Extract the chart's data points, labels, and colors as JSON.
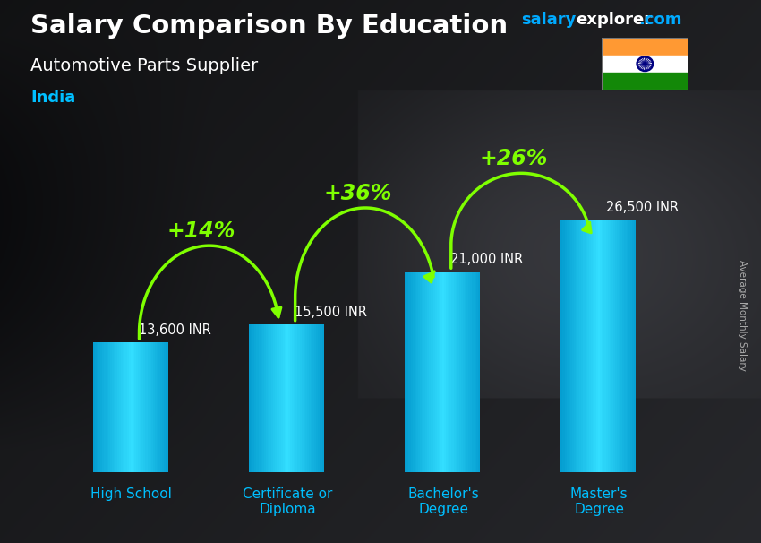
{
  "title_salary": "Salary Comparison By Education",
  "subtitle": "Automotive Parts Supplier",
  "country": "India",
  "ylabel": "Average Monthly Salary",
  "categories": [
    "High School",
    "Certificate or\nDiploma",
    "Bachelor's\nDegree",
    "Master's\nDegree"
  ],
  "values": [
    13600,
    15500,
    21000,
    26500
  ],
  "value_labels": [
    "13,600 INR",
    "15,500 INR",
    "21,000 INR",
    "26,500 INR"
  ],
  "pct_labels": [
    "+14%",
    "+36%",
    "+26%"
  ],
  "title_color": "#ffffff",
  "subtitle_color": "#ffffff",
  "country_color": "#00bfff",
  "pct_color": "#7fff00",
  "value_label_color": "#ffffff",
  "tick_label_color": "#00bfff",
  "ylabel_color": "#aaaaaa",
  "wm_salary_color": "#00aaff",
  "wm_explorer_color": "#ffffff",
  "wm_com_color": "#00aaff"
}
